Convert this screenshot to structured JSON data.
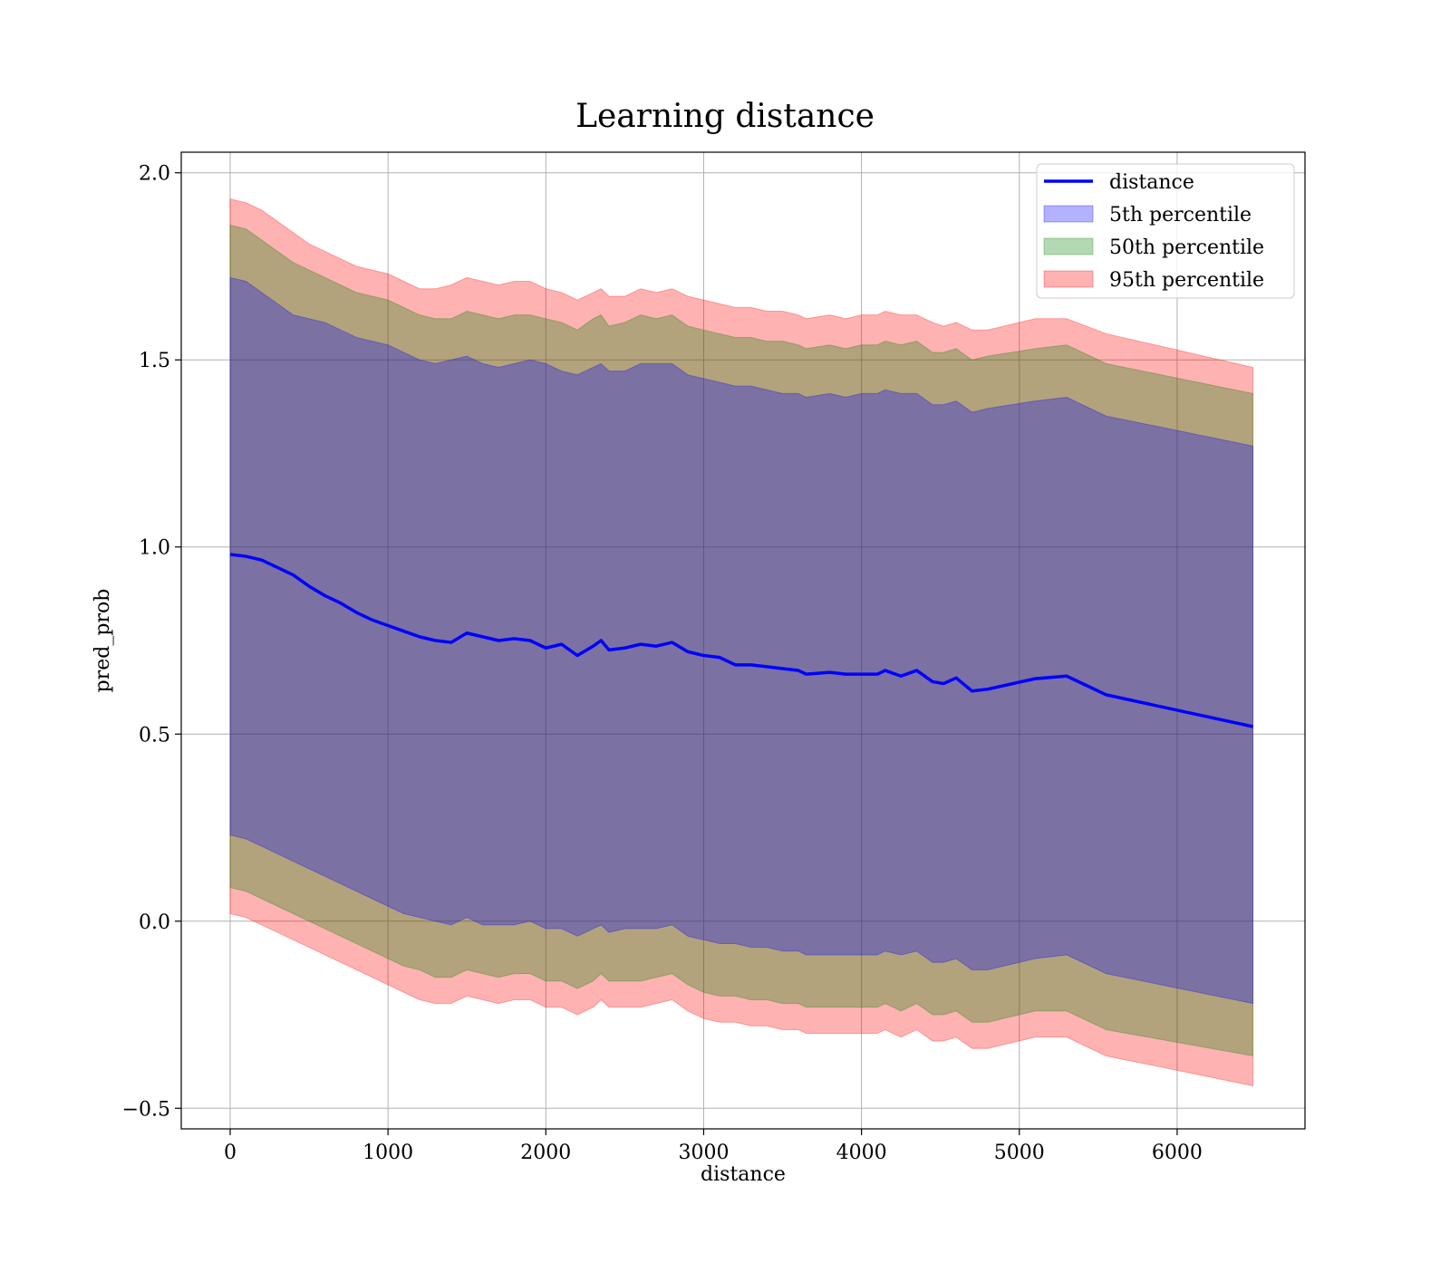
{
  "chart_data": {
    "type": "line",
    "title": "Learning distance",
    "xlabel": "distance",
    "ylabel": "pred_prob",
    "xlim": [
      -310,
      6810
    ],
    "ylim": [
      -0.555,
      2.055
    ],
    "grid": true,
    "legend_position": "top-right",
    "xticks": [
      0,
      1000,
      2000,
      3000,
      4000,
      5000,
      6000
    ],
    "xtick_labels": [
      "0",
      "1000",
      "2000",
      "3000",
      "4000",
      "5000",
      "6000"
    ],
    "yticks": [
      -0.5,
      0.0,
      0.5,
      1.0,
      1.5,
      2.0
    ],
    "ytick_labels": [
      "−0.5",
      "0.0",
      "0.5",
      "1.0",
      "1.5",
      "2.0"
    ],
    "x": [
      0,
      100,
      200,
      300,
      400,
      500,
      600,
      700,
      800,
      900,
      1000,
      1100,
      1200,
      1300,
      1400,
      1500,
      1600,
      1700,
      1800,
      1900,
      2000,
      2100,
      2200,
      2300,
      2350,
      2400,
      2500,
      2600,
      2700,
      2800,
      2900,
      3000,
      3100,
      3200,
      3300,
      3400,
      3500,
      3600,
      3650,
      3800,
      3900,
      4000,
      4100,
      4150,
      4250,
      4350,
      4450,
      4520,
      4600,
      4700,
      4800,
      5100,
      5300,
      5550,
      6480
    ],
    "series": [
      {
        "name": "distance",
        "role": "line",
        "color": "#0000ff",
        "values": [
          0.98,
          0.975,
          0.965,
          0.945,
          0.925,
          0.895,
          0.87,
          0.85,
          0.825,
          0.805,
          0.79,
          0.775,
          0.76,
          0.75,
          0.745,
          0.77,
          0.76,
          0.75,
          0.755,
          0.75,
          0.73,
          0.74,
          0.71,
          0.735,
          0.75,
          0.725,
          0.73,
          0.74,
          0.735,
          0.745,
          0.72,
          0.71,
          0.705,
          0.685,
          0.685,
          0.68,
          0.675,
          0.67,
          0.66,
          0.665,
          0.66,
          0.66,
          0.66,
          0.67,
          0.655,
          0.67,
          0.64,
          0.635,
          0.65,
          0.615,
          0.62,
          0.648,
          0.655,
          0.605,
          0.52
        ]
      },
      {
        "name": "5th percentile",
        "role": "band",
        "color": "#0000ff",
        "opacity": 0.3,
        "upper": [
          1.72,
          1.71,
          1.68,
          1.65,
          1.62,
          1.61,
          1.6,
          1.58,
          1.56,
          1.55,
          1.54,
          1.52,
          1.5,
          1.49,
          1.5,
          1.51,
          1.49,
          1.48,
          1.49,
          1.5,
          1.49,
          1.47,
          1.46,
          1.48,
          1.49,
          1.47,
          1.47,
          1.49,
          1.49,
          1.49,
          1.46,
          1.45,
          1.44,
          1.43,
          1.43,
          1.42,
          1.41,
          1.41,
          1.4,
          1.41,
          1.4,
          1.41,
          1.41,
          1.42,
          1.41,
          1.41,
          1.38,
          1.38,
          1.39,
          1.36,
          1.37,
          1.39,
          1.4,
          1.35,
          1.27
        ],
        "lower": [
          0.23,
          0.22,
          0.2,
          0.18,
          0.16,
          0.14,
          0.12,
          0.1,
          0.08,
          0.06,
          0.04,
          0.02,
          0.01,
          0.0,
          -0.01,
          0.01,
          -0.01,
          -0.01,
          -0.01,
          0.0,
          -0.02,
          -0.02,
          -0.04,
          -0.02,
          -0.01,
          -0.03,
          -0.02,
          -0.02,
          -0.02,
          -0.01,
          -0.04,
          -0.05,
          -0.06,
          -0.06,
          -0.07,
          -0.07,
          -0.08,
          -0.08,
          -0.09,
          -0.09,
          -0.09,
          -0.09,
          -0.09,
          -0.08,
          -0.09,
          -0.08,
          -0.11,
          -0.11,
          -0.1,
          -0.13,
          -0.13,
          -0.1,
          -0.09,
          -0.14,
          -0.22
        ]
      },
      {
        "name": "50th percentile",
        "role": "band",
        "color": "#008000",
        "opacity": 0.3,
        "upper": [
          1.86,
          1.85,
          1.82,
          1.79,
          1.76,
          1.74,
          1.72,
          1.7,
          1.68,
          1.67,
          1.66,
          1.64,
          1.62,
          1.61,
          1.61,
          1.63,
          1.62,
          1.61,
          1.62,
          1.62,
          1.61,
          1.6,
          1.58,
          1.61,
          1.62,
          1.59,
          1.6,
          1.62,
          1.61,
          1.62,
          1.59,
          1.58,
          1.57,
          1.56,
          1.56,
          1.55,
          1.55,
          1.54,
          1.53,
          1.54,
          1.53,
          1.54,
          1.54,
          1.55,
          1.54,
          1.55,
          1.52,
          1.52,
          1.53,
          1.5,
          1.51,
          1.53,
          1.54,
          1.49,
          1.41
        ],
        "lower": [
          0.09,
          0.08,
          0.06,
          0.04,
          0.02,
          0.0,
          -0.02,
          -0.04,
          -0.06,
          -0.08,
          -0.1,
          -0.12,
          -0.13,
          -0.15,
          -0.15,
          -0.13,
          -0.14,
          -0.15,
          -0.14,
          -0.14,
          -0.16,
          -0.16,
          -0.18,
          -0.16,
          -0.14,
          -0.16,
          -0.16,
          -0.16,
          -0.15,
          -0.14,
          -0.17,
          -0.19,
          -0.2,
          -0.2,
          -0.21,
          -0.21,
          -0.22,
          -0.22,
          -0.23,
          -0.23,
          -0.23,
          -0.23,
          -0.23,
          -0.22,
          -0.24,
          -0.22,
          -0.25,
          -0.25,
          -0.24,
          -0.27,
          -0.27,
          -0.24,
          -0.24,
          -0.29,
          -0.36
        ]
      },
      {
        "name": "95th percentile",
        "role": "band",
        "color": "#ff0000",
        "opacity": 0.3,
        "upper": [
          1.93,
          1.92,
          1.9,
          1.87,
          1.84,
          1.81,
          1.79,
          1.77,
          1.75,
          1.74,
          1.73,
          1.71,
          1.69,
          1.69,
          1.7,
          1.72,
          1.71,
          1.7,
          1.71,
          1.71,
          1.69,
          1.68,
          1.66,
          1.68,
          1.69,
          1.67,
          1.67,
          1.69,
          1.68,
          1.69,
          1.67,
          1.66,
          1.65,
          1.64,
          1.64,
          1.63,
          1.63,
          1.62,
          1.61,
          1.62,
          1.61,
          1.62,
          1.62,
          1.63,
          1.62,
          1.62,
          1.6,
          1.59,
          1.6,
          1.58,
          1.58,
          1.61,
          1.61,
          1.57,
          1.48
        ],
        "lower": [
          0.02,
          0.01,
          -0.01,
          -0.03,
          -0.05,
          -0.07,
          -0.09,
          -0.11,
          -0.13,
          -0.15,
          -0.17,
          -0.19,
          -0.21,
          -0.22,
          -0.22,
          -0.2,
          -0.21,
          -0.22,
          -0.21,
          -0.21,
          -0.23,
          -0.23,
          -0.25,
          -0.23,
          -0.21,
          -0.23,
          -0.23,
          -0.23,
          -0.22,
          -0.21,
          -0.24,
          -0.26,
          -0.27,
          -0.27,
          -0.28,
          -0.28,
          -0.29,
          -0.29,
          -0.3,
          -0.3,
          -0.3,
          -0.3,
          -0.3,
          -0.29,
          -0.31,
          -0.29,
          -0.32,
          -0.32,
          -0.31,
          -0.34,
          -0.34,
          -0.31,
          -0.31,
          -0.36,
          -0.44
        ]
      }
    ]
  }
}
